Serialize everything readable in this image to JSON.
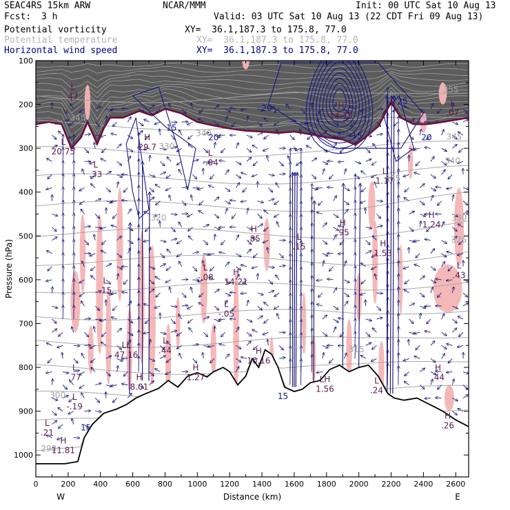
{
  "header": {
    "model": "SEAC4RS 15km ARW",
    "institution": "NCAR/MMM",
    "init": "Init: 00 UTC Sat 10 Aug 13",
    "fcst_label": "Fcst:",
    "fcst_value": "3 h",
    "valid": "Valid: 03 UTC Sat 10 Aug 13 (22 CDT Fri 09 Aug 13)"
  },
  "fields": [
    {
      "name": "Potential vorticity",
      "xy": "XY=  36.1,187.3 to 175.8, 77.0",
      "color": "#000000"
    },
    {
      "name": "Potential temperature",
      "xy": "XY=  36.1,187.3 to 175.8, 77.0",
      "color": "#b4b4b4"
    },
    {
      "name": "Horizontal wind speed",
      "xy": "XY=  36.1,187.3 to 175.8, 77.0",
      "color": "#00008b"
    }
  ],
  "chart_data": {
    "type": "cross-section",
    "xlabel": "Distance (km)",
    "ylabel": "Pressure (hPa)",
    "xlim": [
      0,
      2680
    ],
    "ylim": [
      1050,
      100
    ],
    "x_ticks": [
      0,
      200,
      400,
      600,
      800,
      1000,
      1200,
      1400,
      1600,
      1800,
      2000,
      2200,
      2400,
      2600
    ],
    "y_ticks": [
      100,
      200,
      300,
      400,
      500,
      600,
      700,
      800,
      900,
      1000
    ],
    "left_end_label": "W",
    "right_end_label": "E",
    "pv_shading_color": "#f4b4b4",
    "tropopause_color": "#6b1040",
    "theta_labels": [
      {
        "text": "290",
        "x": 80,
        "y": 992
      },
      {
        "text": "300",
        "x": 135,
        "y": 870
      },
      {
        "text": "315",
        "x": 1985,
        "y": 765
      },
      {
        "text": "320",
        "x": 760,
        "y": 465
      },
      {
        "text": "325",
        "x": 2620,
        "y": 515
      },
      {
        "text": "330",
        "x": 810,
        "y": 302
      },
      {
        "text": "330",
        "x": 2620,
        "y": 465
      },
      {
        "text": "335",
        "x": 2210,
        "y": 375
      },
      {
        "text": "340",
        "x": 1040,
        "y": 272
      },
      {
        "text": "340",
        "x": 2580,
        "y": 335
      },
      {
        "text": "340",
        "x": 260,
        "y": 237
      },
      {
        "text": "345",
        "x": 2590,
        "y": 280
      },
      {
        "text": "355",
        "x": 2570,
        "y": 172
      }
    ],
    "wind_labels": [
      {
        "text": "20",
        "x": 1100,
        "y": 282
      },
      {
        "text": "20",
        "x": 1430,
        "y": 215
      },
      {
        "text": "20",
        "x": 2420,
        "y": 282
      },
      {
        "text": "25",
        "x": 2270,
        "y": 200
      },
      {
        "text": "15",
        "x": 840,
        "y": 260
      },
      {
        "text": "15",
        "x": 310,
        "y": 944
      },
      {
        "text": "15",
        "x": 1530,
        "y": 872
      },
      {
        "text": "15",
        "x": 1990,
        "y": 278
      }
    ],
    "extrema": [
      {
        "kind": "L",
        "value": "47",
        "x": 230,
        "y": 178
      },
      {
        "kind": "L",
        "value": "20.75",
        "x": 170,
        "y": 303
      },
      {
        "kind": "L",
        "value": ".33",
        "x": 370,
        "y": 355
      },
      {
        "kind": "H",
        "value": "29.7",
        "x": 690,
        "y": 293
      },
      {
        "kind": "L",
        "value": "-.04",
        "x": 1080,
        "y": 328
      },
      {
        "kind": "H",
        "value": "14.15",
        "x": 1890,
        "y": 222
      },
      {
        "kind": "L",
        "value": ".07",
        "x": 2580,
        "y": 215
      },
      {
        "kind": "L",
        "value": "1.17",
        "x": 2160,
        "y": 370
      },
      {
        "kind": "H",
        "value": ".85",
        "x": 1350,
        "y": 502
      },
      {
        "kind": "L",
        "value": ".15",
        "x": 1630,
        "y": 520
      },
      {
        "kind": "H",
        "value": ".95",
        "x": 1900,
        "y": 488
      },
      {
        "kind": "H",
        "value": "1.24",
        "x": 2450,
        "y": 470
      },
      {
        "kind": "H",
        "value": "1.53",
        "x": 2150,
        "y": 535
      },
      {
        "kind": "L",
        "value": ".43",
        "x": 2620,
        "y": 585
      },
      {
        "kind": "L",
        "value": ".15",
        "x": 430,
        "y": 620
      },
      {
        "kind": "L",
        "value": "-.08",
        "x": 1050,
        "y": 590
      },
      {
        "kind": "H",
        "value": "14.21",
        "x": 1240,
        "y": 600
      },
      {
        "kind": "L",
        "value": "-.05",
        "x": 1180,
        "y": 673
      },
      {
        "kind": "LL",
        "value": "47.16",
        "x": 560,
        "y": 767
      },
      {
        "kind": "L",
        "value": ".44",
        "x": 800,
        "y": 757
      },
      {
        "kind": "H",
        "value": "10.16",
        "x": 1380,
        "y": 780
      },
      {
        "kind": "L",
        "value": ".77",
        "x": 240,
        "y": 818
      },
      {
        "kind": "H",
        "value": "8.01",
        "x": 640,
        "y": 840
      },
      {
        "kind": "H",
        "value": "1.27",
        "x": 990,
        "y": 818
      },
      {
        "kind": "H",
        "value": ".44",
        "x": 2490,
        "y": 818
      },
      {
        "kind": "L",
        "value": ".24",
        "x": 2110,
        "y": 848
      },
      {
        "kind": "LH",
        "value": "1.56",
        "x": 1790,
        "y": 845
      },
      {
        "kind": "L",
        "value": "-.19",
        "x": 240,
        "y": 885
      },
      {
        "kind": "L",
        "value": ".21",
        "x": 70,
        "y": 945
      },
      {
        "kind": "H",
        "value": "11.81",
        "x": 170,
        "y": 985
      },
      {
        "kind": "H",
        "value": ".26",
        "x": 2550,
        "y": 928
      }
    ],
    "terrain": [
      {
        "x": 0,
        "p": 1020
      },
      {
        "x": 180,
        "p": 1020
      },
      {
        "x": 260,
        "p": 1015
      },
      {
        "x": 300,
        "p": 960
      },
      {
        "x": 350,
        "p": 930
      },
      {
        "x": 420,
        "p": 905
      },
      {
        "x": 500,
        "p": 895
      },
      {
        "x": 560,
        "p": 885
      },
      {
        "x": 620,
        "p": 870
      },
      {
        "x": 680,
        "p": 860
      },
      {
        "x": 760,
        "p": 848
      },
      {
        "x": 820,
        "p": 830
      },
      {
        "x": 880,
        "p": 845
      },
      {
        "x": 940,
        "p": 820
      },
      {
        "x": 1000,
        "p": 812
      },
      {
        "x": 1060,
        "p": 822
      },
      {
        "x": 1100,
        "p": 810
      },
      {
        "x": 1160,
        "p": 800
      },
      {
        "x": 1200,
        "p": 810
      },
      {
        "x": 1250,
        "p": 840
      },
      {
        "x": 1300,
        "p": 820
      },
      {
        "x": 1340,
        "p": 780
      },
      {
        "x": 1380,
        "p": 800
      },
      {
        "x": 1420,
        "p": 760
      },
      {
        "x": 1460,
        "p": 770
      },
      {
        "x": 1500,
        "p": 800
      },
      {
        "x": 1540,
        "p": 845
      },
      {
        "x": 1600,
        "p": 855
      },
      {
        "x": 1650,
        "p": 850
      },
      {
        "x": 1700,
        "p": 835
      },
      {
        "x": 1760,
        "p": 830
      },
      {
        "x": 1820,
        "p": 805
      },
      {
        "x": 1880,
        "p": 795
      },
      {
        "x": 1940,
        "p": 810
      },
      {
        "x": 2000,
        "p": 800
      },
      {
        "x": 2060,
        "p": 795
      },
      {
        "x": 2120,
        "p": 820
      },
      {
        "x": 2180,
        "p": 860
      },
      {
        "x": 2220,
        "p": 870
      },
      {
        "x": 2280,
        "p": 875
      },
      {
        "x": 2360,
        "p": 870
      },
      {
        "x": 2440,
        "p": 885
      },
      {
        "x": 2520,
        "p": 900
      },
      {
        "x": 2600,
        "p": 920
      },
      {
        "x": 2680,
        "p": 935
      }
    ],
    "tropopause": [
      {
        "x": 0,
        "p": 245
      },
      {
        "x": 80,
        "p": 240
      },
      {
        "x": 160,
        "p": 245
      },
      {
        "x": 220,
        "p": 300
      },
      {
        "x": 280,
        "p": 275
      },
      {
        "x": 320,
        "p": 240
      },
      {
        "x": 380,
        "p": 290
      },
      {
        "x": 420,
        "p": 255
      },
      {
        "x": 460,
        "p": 230
      },
      {
        "x": 540,
        "p": 230
      },
      {
        "x": 640,
        "p": 215
      },
      {
        "x": 720,
        "p": 225
      },
      {
        "x": 800,
        "p": 210
      },
      {
        "x": 900,
        "p": 220
      },
      {
        "x": 1000,
        "p": 240
      },
      {
        "x": 1100,
        "p": 248
      },
      {
        "x": 1200,
        "p": 255
      },
      {
        "x": 1300,
        "p": 260
      },
      {
        "x": 1400,
        "p": 262
      },
      {
        "x": 1500,
        "p": 265
      },
      {
        "x": 1600,
        "p": 262
      },
      {
        "x": 1700,
        "p": 268
      },
      {
        "x": 1800,
        "p": 275
      },
      {
        "x": 1900,
        "p": 280
      },
      {
        "x": 1980,
        "p": 292
      },
      {
        "x": 2040,
        "p": 275
      },
      {
        "x": 2120,
        "p": 250
      },
      {
        "x": 2200,
        "p": 195
      },
      {
        "x": 2260,
        "p": 230
      },
      {
        "x": 2340,
        "p": 245
      },
      {
        "x": 2420,
        "p": 245
      },
      {
        "x": 2520,
        "p": 240
      },
      {
        "x": 2600,
        "p": 235
      },
      {
        "x": 2680,
        "p": 230
      }
    ]
  }
}
